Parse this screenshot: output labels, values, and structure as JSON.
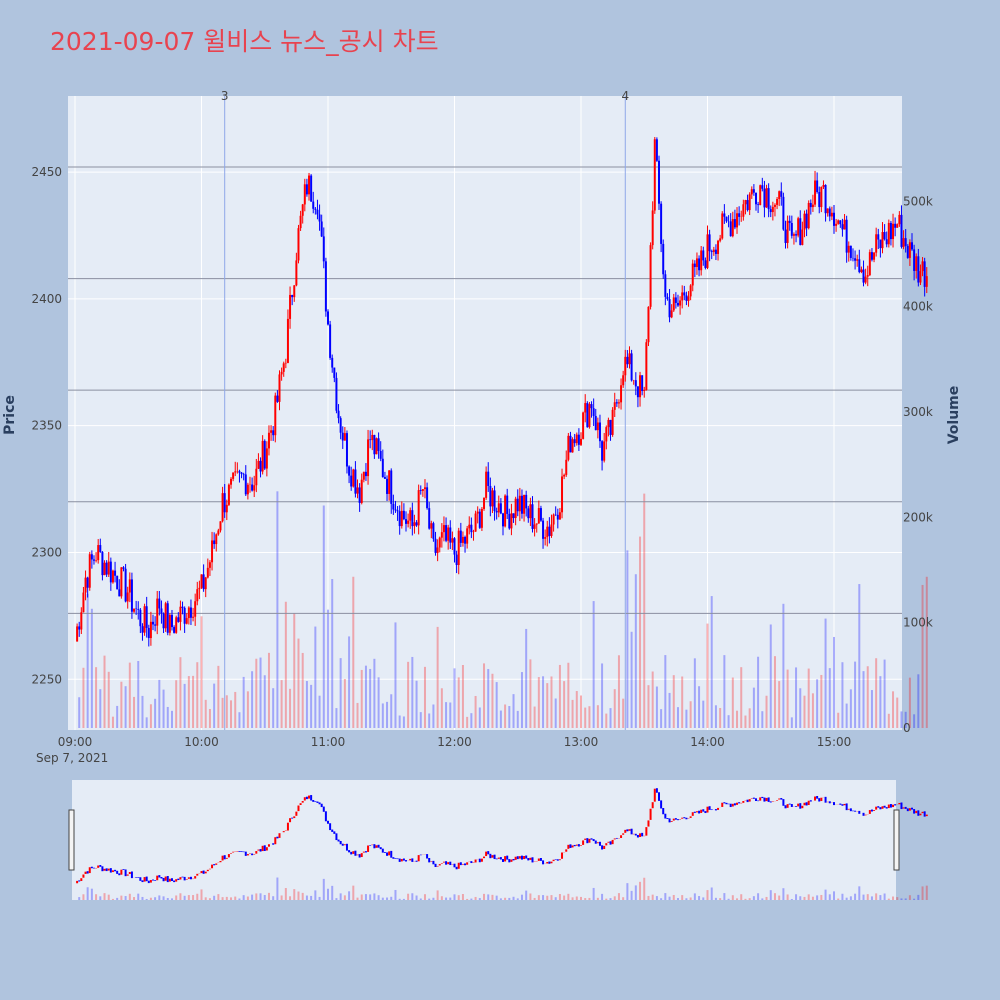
{
  "title": "2021-09-07 윌비스 뉴스_공시 차트",
  "chart_data": {
    "type": "candlestick",
    "title": "2021-09-07 윌비스 뉴스_공시 차트",
    "ylabel": "Price",
    "y2label": "Volume",
    "date_label": "Sep 7, 2021",
    "x_ticks": [
      "09:00",
      "10:00",
      "11:00",
      "12:00",
      "13:00",
      "14:00",
      "15:00"
    ],
    "x_range": [
      "09:00",
      "15:30"
    ],
    "y_ticks": [
      2250,
      2300,
      2350,
      2400,
      2450
    ],
    "ylim": [
      2230,
      2480
    ],
    "volume_ticks": [
      "0",
      "100k",
      "200k",
      "300k",
      "400k",
      "500k"
    ],
    "volume_max": 600000,
    "events": [
      {
        "label": "3",
        "time": "10:11"
      },
      {
        "label": "4",
        "time": "13:21"
      }
    ],
    "reference_lines": [
      2452,
      2408,
      2364,
      2320,
      2276
    ],
    "colors": {
      "up": "#ff0000",
      "down": "#0000ff",
      "plot_bg": "#e5ecf6",
      "paper_bg": "#b0c4de",
      "title": "#e8434f",
      "event_line": "#8fa8e8"
    },
    "price_path": [
      [
        "09:00",
        2265
      ],
      [
        "09:05",
        2290
      ],
      [
        "09:10",
        2300
      ],
      [
        "09:15",
        2295
      ],
      [
        "09:20",
        2290
      ],
      [
        "09:25",
        2285
      ],
      [
        "09:30",
        2275
      ],
      [
        "09:35",
        2270
      ],
      [
        "09:40",
        2280
      ],
      [
        "09:45",
        2270
      ],
      [
        "09:50",
        2275
      ],
      [
        "09:55",
        2280
      ],
      [
        "10:00",
        2285
      ],
      [
        "10:05",
        2300
      ],
      [
        "10:10",
        2320
      ],
      [
        "10:15",
        2325
      ],
      [
        "10:20",
        2330
      ],
      [
        "10:25",
        2328
      ],
      [
        "10:30",
        2340
      ],
      [
        "10:35",
        2355
      ],
      [
        "10:40",
        2380
      ],
      [
        "10:45",
        2420
      ],
      [
        "10:50",
        2445
      ],
      [
        "10:55",
        2440
      ],
      [
        "11:00",
        2390
      ],
      [
        "11:05",
        2355
      ],
      [
        "11:10",
        2335
      ],
      [
        "11:15",
        2325
      ],
      [
        "11:20",
        2345
      ],
      [
        "11:25",
        2335
      ],
      [
        "11:30",
        2325
      ],
      [
        "11:35",
        2315
      ],
      [
        "11:40",
        2310
      ],
      [
        "11:45",
        2325
      ],
      [
        "11:50",
        2300
      ],
      [
        "11:55",
        2305
      ],
      [
        "12:00",
        2300
      ],
      [
        "12:05",
        2305
      ],
      [
        "12:10",
        2310
      ],
      [
        "12:15",
        2325
      ],
      [
        "12:20",
        2320
      ],
      [
        "12:25",
        2315
      ],
      [
        "12:30",
        2320
      ],
      [
        "12:35",
        2315
      ],
      [
        "12:40",
        2312
      ],
      [
        "12:45",
        2310
      ],
      [
        "12:50",
        2322
      ],
      [
        "12:55",
        2345
      ],
      [
        "13:00",
        2350
      ],
      [
        "13:05",
        2360
      ],
      [
        "13:10",
        2340
      ],
      [
        "13:15",
        2350
      ],
      [
        "13:20",
        2375
      ],
      [
        "13:25",
        2370
      ],
      [
        "13:30",
        2360
      ],
      [
        "13:35",
        2460
      ],
      [
        "13:40",
        2400
      ],
      [
        "13:45",
        2395
      ],
      [
        "13:50",
        2405
      ],
      [
        "13:55",
        2410
      ],
      [
        "14:00",
        2420
      ],
      [
        "14:05",
        2425
      ],
      [
        "14:10",
        2430
      ],
      [
        "14:15",
        2435
      ],
      [
        "14:20",
        2440
      ],
      [
        "14:25",
        2445
      ],
      [
        "14:30",
        2440
      ],
      [
        "14:35",
        2435
      ],
      [
        "14:40",
        2420
      ],
      [
        "14:45",
        2430
      ],
      [
        "14:50",
        2440
      ],
      [
        "14:55",
        2442
      ],
      [
        "15:00",
        2435
      ],
      [
        "15:05",
        2425
      ],
      [
        "15:10",
        2420
      ],
      [
        "15:15",
        2410
      ],
      [
        "15:20",
        2420
      ],
      [
        "15:25",
        2425
      ],
      [
        "15:30",
        2430
      ],
      [
        "15:35",
        2420
      ],
      [
        "15:40",
        2412
      ],
      [
        "15:45",
        2410
      ]
    ]
  }
}
